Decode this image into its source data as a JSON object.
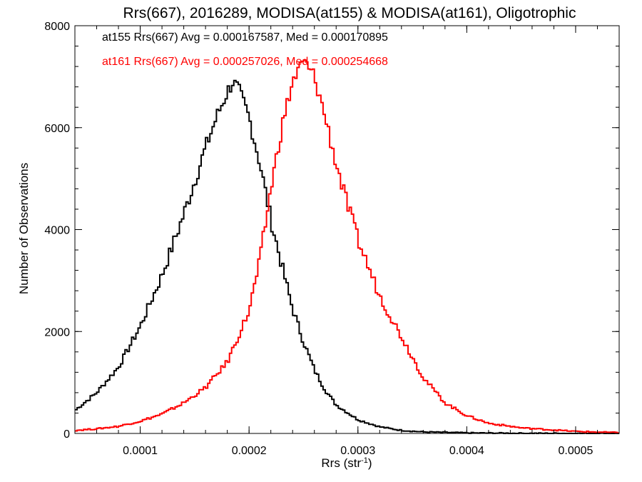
{
  "chart_data": {
    "type": "line",
    "style": "histogram-steps",
    "title": "Rrs(667), 2016289, MODISA(at155) & MODISA(at161), Oligotrophic",
    "xlabel": "Rrs (str",
    "xlabel_superscript": "-1",
    "xlabel_suffix": ")",
    "ylabel": "Number of Observations",
    "xlim": [
      4e-05,
      0.00054
    ],
    "ylim": [
      0,
      8000
    ],
    "x_ticks": [
      {
        "value": 0.0001,
        "label": "0.0001"
      },
      {
        "value": 0.0002,
        "label": "0.0002"
      },
      {
        "value": 0.0003,
        "label": "0.0003"
      },
      {
        "value": 0.0004,
        "label": "0.0004"
      },
      {
        "value": 0.0005,
        "label": "0.0005"
      }
    ],
    "y_ticks": [
      {
        "value": 0,
        "label": "0"
      },
      {
        "value": 2000,
        "label": "2000"
      },
      {
        "value": 4000,
        "label": "4000"
      },
      {
        "value": 6000,
        "label": "6000"
      },
      {
        "value": 8000,
        "label": "8000"
      }
    ],
    "grid": false,
    "series": [
      {
        "name": "at155",
        "color": "#000000",
        "stats_text": "at155 Rrs(667) Avg = 0.000167587, Med = 0.000170895",
        "x": [
          4e-05,
          6e-05,
          8e-05,
          0.0001,
          0.00012,
          0.00014,
          0.00016,
          0.00017,
          0.00018,
          0.000185,
          0.00019,
          0.0002,
          0.00021,
          0.00022,
          0.00023,
          0.00024,
          0.00025,
          0.00026,
          0.00027,
          0.00028,
          0.0003,
          0.00032,
          0.00034,
          0.00036,
          0.0004,
          0.00045,
          0.0005,
          0.00054
        ],
        "values": [
          450,
          800,
          1300,
          2100,
          3100,
          4300,
          5600,
          6200,
          6700,
          6900,
          6750,
          6200,
          5300,
          4200,
          3300,
          2450,
          1800,
          1250,
          850,
          560,
          270,
          130,
          60,
          30,
          10,
          3,
          1,
          0
        ]
      },
      {
        "name": "at161",
        "color": "#ff0000",
        "stats_text": "at161 Rrs(667) Avg = 0.000257026, Med = 0.000254668",
        "x": [
          4e-05,
          6e-05,
          8e-05,
          0.0001,
          0.00012,
          0.00014,
          0.00016,
          0.00018,
          0.0002,
          0.00021,
          0.00022,
          0.00023,
          0.00024,
          0.00025,
          0.00026,
          0.00027,
          0.00028,
          0.00029,
          0.0003,
          0.00032,
          0.00034,
          0.00036,
          0.00038,
          0.0004,
          0.00042,
          0.00045,
          0.0005,
          0.00054
        ],
        "values": [
          60,
          90,
          140,
          240,
          380,
          600,
          900,
          1400,
          2400,
          3400,
          4800,
          6000,
          6900,
          7300,
          7000,
          6200,
          5300,
          4500,
          3800,
          2700,
          1900,
          1100,
          600,
          350,
          200,
          110,
          40,
          15
        ]
      }
    ]
  }
}
